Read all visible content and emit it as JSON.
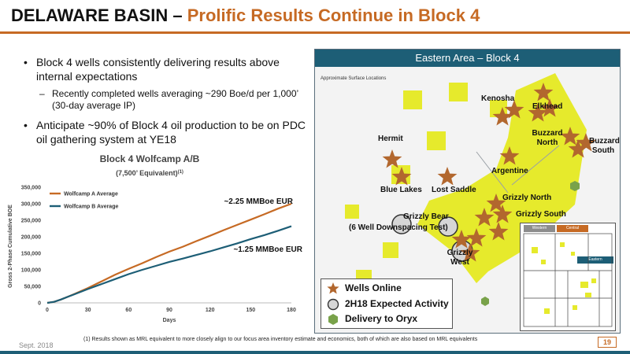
{
  "title": {
    "part1": "DELAWARE BASIN – ",
    "part2": "Prolific Results Continue in Block 4"
  },
  "bullets": {
    "b1": "Block 4 wells consistently delivering results above internal expectations",
    "b1_sub": "Recently completed wells averaging ~290 Boe/d per 1,000’ (30-day average IP)",
    "b2": "Anticipate ~90% of Block 4 oil production to be on PDC oil gathering system at YE18"
  },
  "chart_data": {
    "type": "line",
    "title": "Block 4 Wolfcamp A/B",
    "subtitle": "(7,500’ Equivalent)",
    "subtitle_sup": "(1)",
    "xlabel": "Days",
    "ylabel": "Gross 2-Phase Cumulative BOE",
    "xlim": [
      0,
      180
    ],
    "ylim": [
      0,
      350000
    ],
    "xticks": [
      0,
      30,
      60,
      90,
      120,
      150,
      180
    ],
    "yticks": [
      0,
      50000,
      100000,
      150000,
      200000,
      250000,
      300000,
      350000
    ],
    "xtick_labels": [
      "0",
      "30",
      "60",
      "90",
      "120",
      "150",
      "180"
    ],
    "ytick_labels": [
      "0",
      "50,000",
      "100,000",
      "150,000",
      "200,000",
      "250,000",
      "300,000",
      "350,000"
    ],
    "grid": false,
    "legend": "top-left",
    "series": [
      {
        "name": "Wolfcamp A Average",
        "color": "#c66a24",
        "x": [
          0,
          5,
          10,
          15,
          20,
          30,
          40,
          50,
          60,
          70,
          80,
          90,
          100,
          110,
          120,
          130,
          140,
          150,
          160,
          170,
          180
        ],
        "y": [
          0,
          3000,
          10000,
          18000,
          27000,
          45000,
          65000,
          85000,
          103000,
          120000,
          138000,
          155000,
          170000,
          187000,
          203000,
          220000,
          236000,
          252000,
          268000,
          285000,
          300000
        ]
      },
      {
        "name": "Wolfcamp B Average",
        "color": "#1d5e76",
        "x": [
          0,
          5,
          10,
          15,
          20,
          30,
          40,
          50,
          60,
          70,
          80,
          90,
          100,
          110,
          120,
          130,
          140,
          150,
          160,
          170,
          180
        ],
        "y": [
          0,
          3000,
          10000,
          18000,
          26000,
          42000,
          57000,
          72000,
          87000,
          100000,
          112000,
          124000,
          134000,
          145000,
          156000,
          168000,
          180000,
          193000,
          205000,
          218000,
          232000
        ]
      }
    ],
    "annotations": [
      {
        "text": "~2.25 MMBoe EUR",
        "series": "Wolfcamp A Average"
      },
      {
        "text": "~1.25 MMBoe EUR",
        "series": "Wolfcamp B Average"
      }
    ]
  },
  "map": {
    "header": "Eastern Area – Block 4",
    "approx": "Approximate Surface Locations",
    "colors": {
      "acreage": "#e6ea2c",
      "well": "#b2672e",
      "delivery": "#79a24a",
      "header": "#1d5e76"
    },
    "labels": {
      "elkhead": "Elkhead",
      "kenosha": "Kenosha",
      "buzzard_north": "Buzzard North",
      "buzzard_south": "Buzzard South",
      "hermit": "Hermit",
      "argentine": "Argentine",
      "blue_lakes": "Blue Lakes",
      "lost_saddle": "Lost Saddle",
      "grizzly_north": "Grizzly North",
      "grizzly_south": "Grizzly South",
      "grizzly_bear": "Grizzly Bear",
      "downspacing": "(6 Well Downspacing Test)",
      "grizzly_west": "Grizzly West"
    },
    "legend": {
      "wells": "Wells Online",
      "expected": "2H18 Expected Activity",
      "delivery": "Delivery to Oryx"
    },
    "inset": {
      "western": "Western",
      "central": "Central",
      "eastern": "Eastern"
    }
  },
  "footer": {
    "date": "Sept. 2018",
    "note": "(1)  Results shown as MRL equivalent to more closely align to our focus area inventory estimate and economics, both of which are also based on MRL equivalents",
    "page": "19"
  }
}
